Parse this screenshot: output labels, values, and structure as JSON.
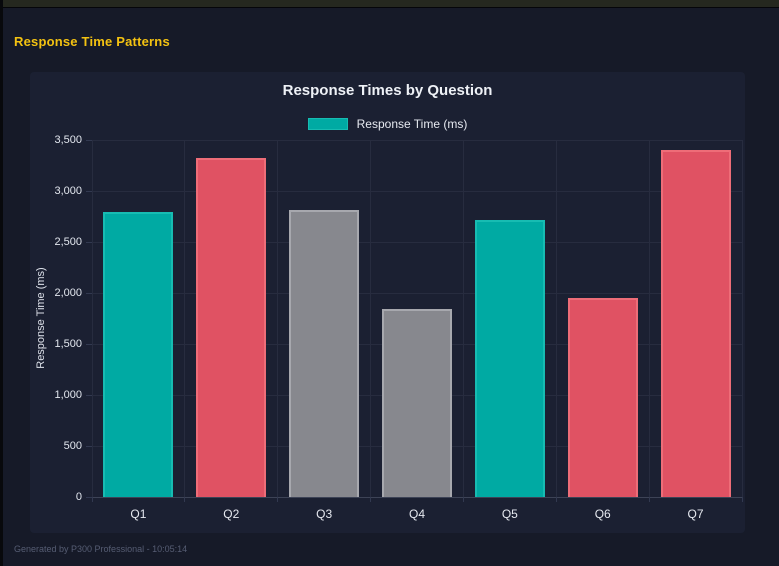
{
  "window": {
    "header_title": "Response Time Patterns"
  },
  "footer": {
    "text": "Generated by P300 Professional - 10:05:14"
  },
  "theme": {
    "page_bg": "#161a28",
    "card_bg": "#1b2032",
    "top_strip": "#25281f",
    "header_title_color": "#f3c211",
    "grid_color": "#272c3f",
    "axis_line_color": "#3d4356",
    "tick_mark_color": "#323950",
    "tick_text_color": "#e2e6ee",
    "teal": "#00aaa3",
    "red": "#e05263",
    "gray": "#87888e"
  },
  "chart_data": {
    "type": "bar",
    "title": "Response Times by Question",
    "legend": [
      {
        "label": "Response Time (ms)",
        "color": "#00aaa3",
        "border": "#17bcb2",
        "position": "top"
      }
    ],
    "xlabel": "",
    "ylabel": "Response Time (ms)",
    "ylim": [
      0,
      3500
    ],
    "grid": true,
    "categories": [
      "Q1",
      "Q2",
      "Q3",
      "Q4",
      "Q5",
      "Q6",
      "Q7"
    ],
    "values": [
      2790,
      3320,
      2810,
      1840,
      2720,
      1950,
      3400
    ],
    "bar_colors": [
      "#00aaa3",
      "#e05263",
      "#87888e",
      "#87888e",
      "#00aaa3",
      "#e05263",
      "#e05263"
    ],
    "bar_border_colors": [
      "#17bcb2",
      "#ee6d78",
      "#a7a8ae",
      "#a7a8ae",
      "#17bcb2",
      "#ee6d78",
      "#ee6d78"
    ],
    "yticks": [
      {
        "value": 0,
        "label": "0"
      },
      {
        "value": 500,
        "label": "500"
      },
      {
        "value": 1000,
        "label": "1,000"
      },
      {
        "value": 1500,
        "label": "1,500"
      },
      {
        "value": 2000,
        "label": "2,000"
      },
      {
        "value": 2500,
        "label": "2,500"
      },
      {
        "value": 3000,
        "label": "3,000"
      },
      {
        "value": 3500,
        "label": "3,500"
      }
    ]
  }
}
